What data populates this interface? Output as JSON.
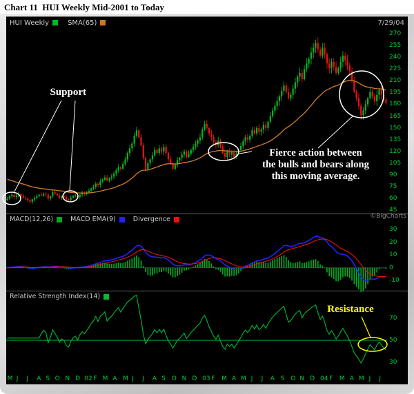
{
  "header": {
    "title": "Chart 11  HUI Weekly Mid-2001 to Today"
  },
  "watermark": "©BigCharts",
  "colors": {
    "background": "#000000",
    "up_candle": "#00bb22",
    "down_candle": "#ee1111",
    "sma": "#c87828",
    "macd_line": "#2222ff",
    "signal_line": "#ee1111",
    "histogram": "#00aa22",
    "rsi_line": "#00bb33",
    "axis_text": "#00cc33",
    "annotation": "#ffffff",
    "resistance": "#ffff00"
  },
  "price_panel": {
    "legend": [
      {
        "label": "HUI Weekly",
        "color": "#00bb22"
      },
      {
        "label": "SMA(65)",
        "color": "#c87828"
      }
    ],
    "date": "7/29/04",
    "annotations": {
      "support": "Support",
      "fierce_lines": [
        "Fierce action between",
        "the bulls and bears along",
        "this moving average."
      ]
    }
  },
  "macd_panel": {
    "legend": [
      {
        "label": "MACD(12,26)",
        "color": "#00aa22"
      },
      {
        "label": "MACD EMA(9)",
        "color": "#2222ff"
      },
      {
        "label": "Divergence",
        "color": "#ee1111"
      }
    ]
  },
  "rsi_panel": {
    "legend": [
      {
        "label": "Relative Strength Index(14)",
        "color": "#00bb33"
      }
    ],
    "annotation": "Resistance"
  },
  "chart_data": {
    "type": "candlestick",
    "title": "HUI Weekly Mid-2001 to Today",
    "frequency": "weekly",
    "price_ylim": [
      41,
      276
    ],
    "price_yticks": [
      270,
      255,
      240,
      225,
      210,
      195,
      180,
      165,
      150,
      135,
      120,
      105,
      90,
      75,
      60,
      45
    ],
    "series": [
      {
        "name": "HUI Weekly",
        "type": "candlestick",
        "values_close": [
          60,
          63,
          65,
          62,
          64,
          66,
          63,
          61,
          60,
          58,
          56,
          59,
          61,
          63,
          65,
          64,
          66,
          65,
          60,
          63,
          68,
          66,
          64,
          61,
          63,
          62,
          59,
          58,
          61,
          63,
          64,
          62,
          65,
          67,
          66,
          68,
          70,
          73,
          75,
          79,
          77,
          82,
          84,
          87,
          83,
          86,
          88,
          92,
          96,
          100,
          98,
          104,
          110,
          118,
          124,
          130,
          140,
          147,
          138,
          128,
          112,
          98,
          105,
          110,
          115,
          122,
          118,
          124,
          120,
          126,
          118,
          110,
          105,
          98,
          103,
          109,
          112,
          116,
          120,
          113,
          117,
          122,
          126,
          130,
          134,
          138,
          148,
          155,
          150,
          143,
          138,
          132,
          128,
          134,
          126,
          118,
          113,
          120,
          116,
          119,
          113,
          117,
          122,
          127,
          133,
          138,
          135,
          140,
          147,
          143,
          150,
          145,
          148,
          154,
          150,
          158,
          165,
          172,
          178,
          184,
          190,
          197,
          204,
          196,
          188,
          192,
          200,
          208,
          215,
          220,
          212,
          225,
          232,
          238,
          246,
          252,
          258,
          250,
          242,
          252,
          244,
          232,
          226,
          234,
          228,
          220,
          226,
          234,
          242,
          236,
          230,
          222,
          210,
          196,
          188,
          178,
          166,
          172,
          180,
          188,
          196,
          190,
          184,
          192,
          198,
          192,
          186,
          182
        ]
      },
      {
        "name": "SMA(65)",
        "type": "line",
        "derived": "65-week moving average of close"
      }
    ],
    "x_axis": {
      "month_labels": [
        "M",
        "J",
        "J",
        "A",
        "S",
        "O",
        "N",
        "D",
        "02",
        "F",
        "M",
        "A",
        "M",
        "J",
        "J",
        "A",
        "S",
        "O",
        "N",
        "D",
        "03",
        "F",
        "M",
        "A",
        "M",
        "J",
        "J",
        "A",
        "S",
        "O",
        "N",
        "D",
        "04",
        "F",
        "M",
        "A",
        "M",
        "J",
        "J"
      ],
      "weeks_per_month": [
        4,
        4,
        5,
        4,
        4,
        4,
        5,
        4,
        4,
        4,
        4,
        5,
        4,
        4,
        5,
        4,
        4,
        5,
        4,
        5,
        4,
        4,
        5,
        4,
        4,
        5,
        4,
        4,
        5,
        4,
        4,
        5,
        4,
        4,
        5,
        4,
        4,
        5,
        4
      ]
    },
    "panels": [
      {
        "name": "MACD(12,26)",
        "lines": [
          "MACD(12,26)",
          "MACD EMA(9)"
        ],
        "histogram": "Divergence",
        "ylim": [
          -18,
          34
        ],
        "yticks": [
          30,
          20,
          10,
          0,
          -10
        ]
      },
      {
        "name": "Relative Strength Index(14)",
        "ylim": [
          20,
          85
        ],
        "yticks": [
          70,
          50,
          30
        ],
        "reference_line": 50
      }
    ]
  }
}
